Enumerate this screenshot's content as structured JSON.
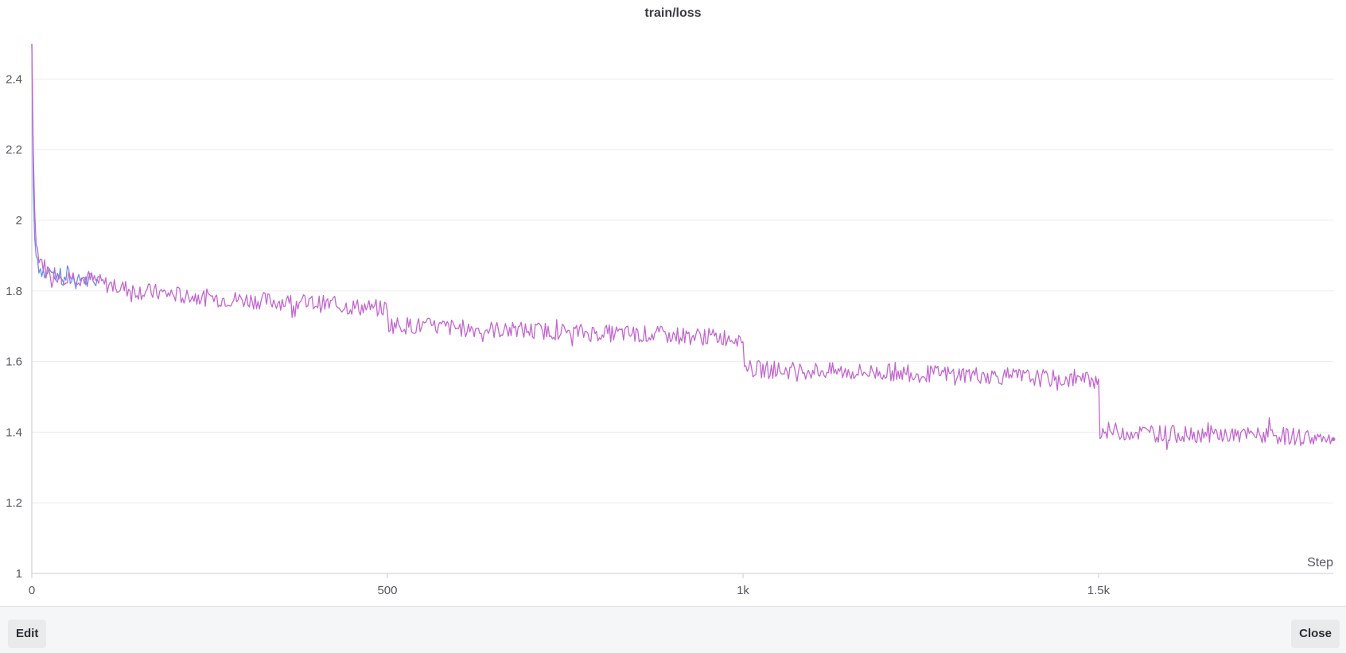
{
  "footer": {
    "edit_label": "Edit",
    "close_label": "Close"
  },
  "chart_data": {
    "type": "line",
    "title": "train/loss",
    "xlabel": "Step",
    "ylabel": "",
    "xlim": [
      0,
      1830
    ],
    "ylim": [
      1,
      2.5
    ],
    "xticks": [
      0,
      500,
      1000,
      1500
    ],
    "xtick_labels": [
      "0",
      "500",
      "1k",
      "1.5k"
    ],
    "yticks": [
      1,
      1.2,
      1.4,
      1.6,
      1.8,
      2,
      2.2,
      2.4
    ],
    "ytick_labels": [
      "1",
      "1.2",
      "1.4",
      "1.6",
      "1.8",
      "2",
      "2.2",
      "2.4"
    ],
    "grid": true,
    "legend": "none",
    "series": [
      {
        "color": "#6b8fe0",
        "x": [
          0,
          2,
          4,
          6,
          8,
          10,
          15,
          20,
          25,
          30,
          35,
          40,
          45,
          50,
          55,
          60,
          65,
          70,
          75,
          80,
          85,
          90,
          95
        ],
        "y": [
          2.5,
          2.1,
          1.95,
          1.9,
          1.89,
          1.87,
          1.86,
          1.84,
          1.86,
          1.83,
          1.85,
          1.84,
          1.82,
          1.85,
          1.83,
          1.84,
          1.82,
          1.84,
          1.83,
          1.82,
          1.84,
          1.82,
          1.83
        ]
      },
      {
        "color": "#c266cf",
        "x": [
          0,
          2,
          5,
          10,
          20,
          30,
          40,
          60,
          80,
          100,
          150,
          200,
          250,
          300,
          350,
          400,
          450,
          498,
          500,
          502,
          550,
          600,
          650,
          700,
          750,
          800,
          850,
          900,
          950,
          998,
          1000,
          1002,
          1050,
          1100,
          1150,
          1200,
          1250,
          1300,
          1350,
          1400,
          1450,
          1498,
          1500,
          1502,
          1550,
          1600,
          1650,
          1700,
          1750,
          1800,
          1830
        ],
        "y": [
          2.5,
          2.2,
          1.94,
          1.9,
          1.86,
          1.85,
          1.845,
          1.84,
          1.835,
          1.82,
          1.8,
          1.79,
          1.78,
          1.775,
          1.77,
          1.765,
          1.755,
          1.75,
          1.74,
          1.705,
          1.7,
          1.695,
          1.69,
          1.688,
          1.685,
          1.68,
          1.678,
          1.675,
          1.67,
          1.668,
          1.66,
          1.58,
          1.575,
          1.575,
          1.57,
          1.57,
          1.565,
          1.565,
          1.56,
          1.555,
          1.55,
          1.548,
          1.54,
          1.405,
          1.4,
          1.395,
          1.395,
          1.39,
          1.39,
          1.385,
          1.38
        ]
      }
    ]
  }
}
